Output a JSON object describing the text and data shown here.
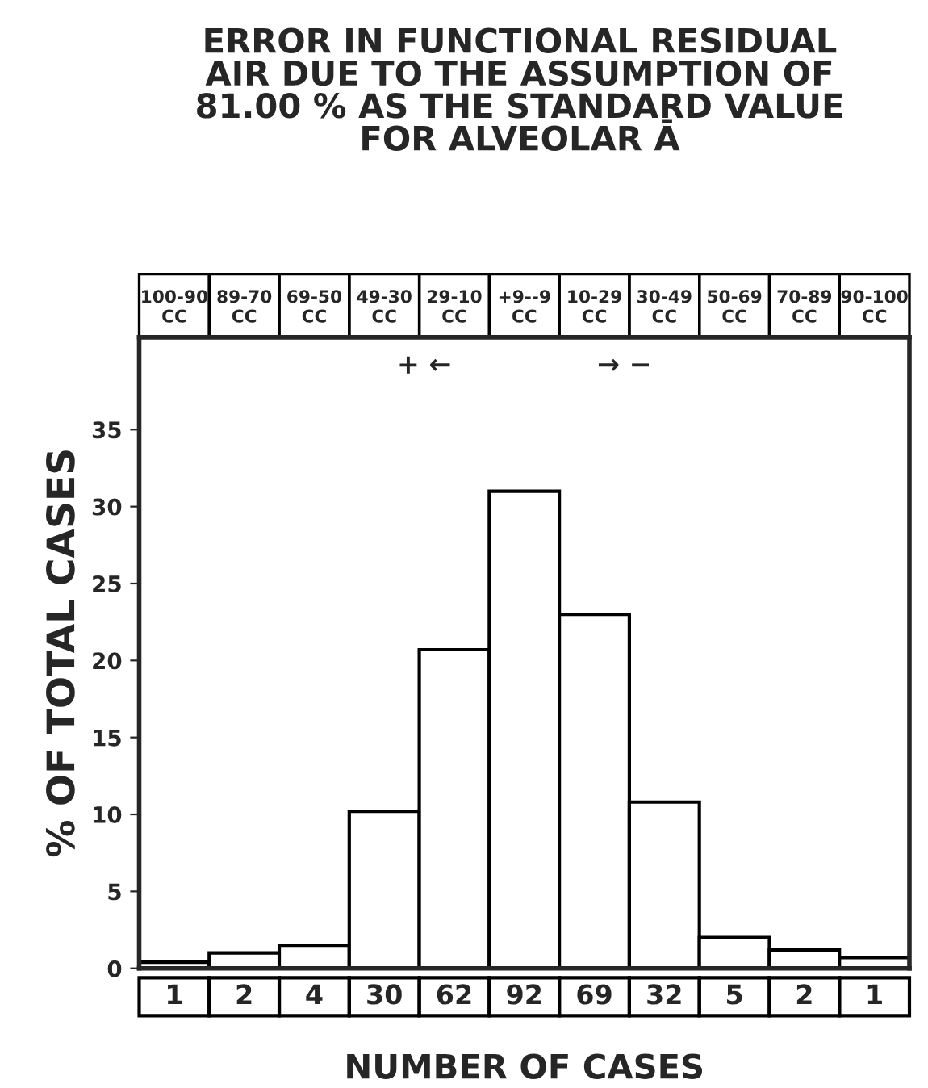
{
  "chart_data": {
    "type": "bar",
    "title": "ERROR IN FUNCTIONAL RESIDUAL\nAIR DUE TO THE ASSUMPTION OF\n81.00 % AS THE STANDARD VALUE\nFOR ALVEOLAR Ā",
    "xlabel": "NUMBER OF CASES",
    "ylabel": "% OF TOTAL CASES",
    "categories": [
      "100-90\nCC",
      "89-70\nCC",
      "69-50\nCC",
      "49-30\nCC",
      "29-10\nCC",
      "+9--9\nCC",
      "10-29\nCC",
      "30-49\nCC",
      "50-69\nCC",
      "70-89\nCC",
      "90-100\nCC"
    ],
    "series": [
      {
        "color": "#ffffff",
        "values": [
          0.4,
          1.0,
          1.5,
          10.2,
          20.7,
          31,
          23,
          10.8,
          2.0,
          1.2,
          0.7
        ]
      }
    ],
    "ylim": [
      0,
      41
    ],
    "yticks": [
      0,
      5,
      10,
      15,
      20,
      25,
      30,
      35
    ],
    "annotations": [
      "+ ←",
      "→ −",
      "1",
      "2",
      "4",
      "30",
      "62",
      "92",
      "69",
      "32",
      "5",
      "2",
      "1"
    ],
    "grid": false,
    "legend": false
  }
}
